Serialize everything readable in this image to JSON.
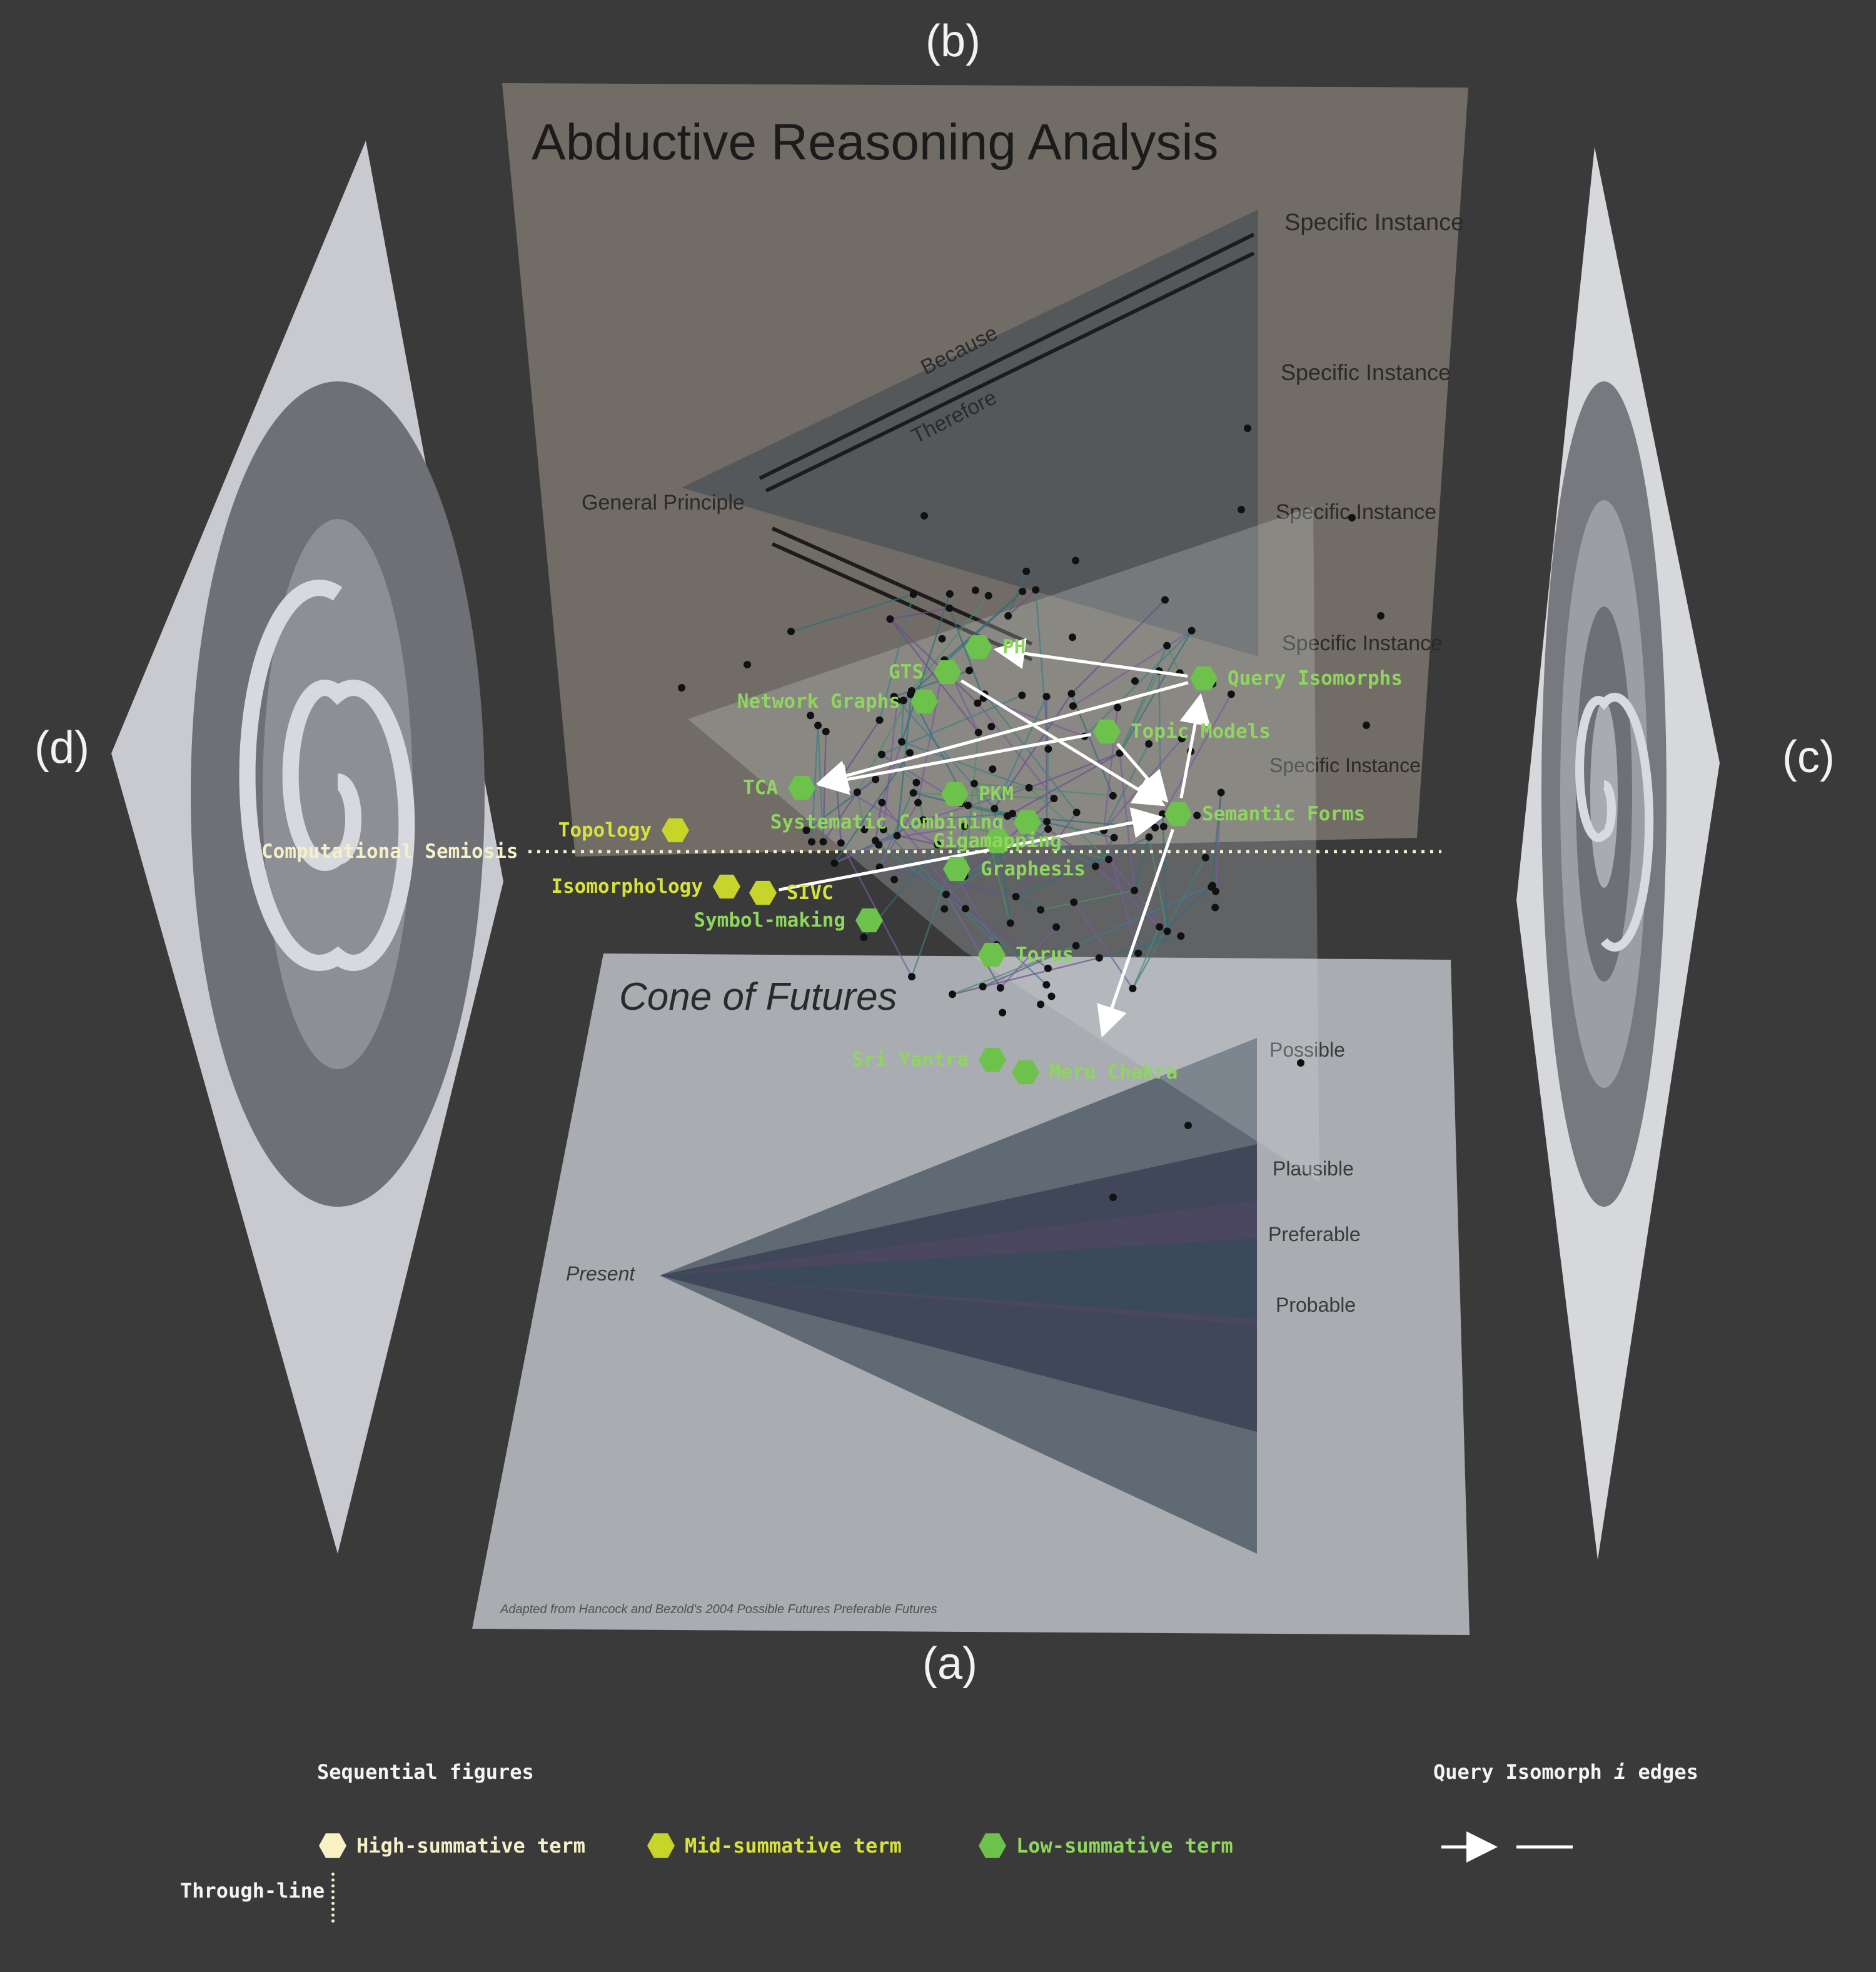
{
  "panels": {
    "a": "(a)",
    "b": "(b)",
    "c": "(c)",
    "d": "(d)"
  },
  "panel_b": {
    "title": "Abductive Reasoning Analysis",
    "labels": [
      "Specific Instance",
      "Specific Instance",
      "Specific Instance",
      "Specific Instance",
      "Specific Instance"
    ],
    "general": "General Principle",
    "because": "Because",
    "therefore": "Therefore"
  },
  "panel_a": {
    "title": "Cone of Futures",
    "labels": [
      "Possible",
      "Plausible",
      "Preferable",
      "Probable"
    ],
    "present": "Present",
    "caption": "Adapted from Hancock and Bezold's 2004 Possible Futures Preferable Futures"
  },
  "throughline": "Computational Semiosis",
  "nodes": [
    {
      "id": "ph",
      "label": "PH",
      "tier": "low"
    },
    {
      "id": "gts",
      "label": "GTS",
      "tier": "low"
    },
    {
      "id": "network",
      "label": "Network Graphs",
      "tier": "low"
    },
    {
      "id": "query",
      "label": "Query Isomorphs",
      "tier": "low"
    },
    {
      "id": "topic",
      "label": "Topic Models",
      "tier": "low"
    },
    {
      "id": "tca",
      "label": "TCA",
      "tier": "low"
    },
    {
      "id": "pkm",
      "label": "PKM",
      "tier": "low"
    },
    {
      "id": "syscomb",
      "label": "Systematic Combining",
      "tier": "low"
    },
    {
      "id": "giga",
      "label": "Gigamapping",
      "tier": "low"
    },
    {
      "id": "semantic",
      "label": "Semantic Forms",
      "tier": "low"
    },
    {
      "id": "graphesis",
      "label": "Graphesis",
      "tier": "low"
    },
    {
      "id": "topology",
      "label": "Topology",
      "tier": "mid"
    },
    {
      "id": "isomorphology",
      "label": "Isomorphology",
      "tier": "mid"
    },
    {
      "id": "sivc",
      "label": "SIVC",
      "tier": "mid"
    },
    {
      "id": "symbol",
      "label": "Symbol-making",
      "tier": "low"
    },
    {
      "id": "torus",
      "label": "Torus",
      "tier": "low"
    },
    {
      "id": "sri",
      "label": "Sri Yantra",
      "tier": "low"
    },
    {
      "id": "meru",
      "label": "Meru Chakra",
      "tier": "low"
    }
  ],
  "legend": {
    "sequential": "Sequential figures",
    "high": "High-summative term",
    "mid": "Mid-summative term",
    "low": "Low-summative term",
    "through": "Through-line",
    "edges_prefix": "Query Isomorph",
    "edges_i": "i",
    "edges_suffix": "edges"
  },
  "colors": {
    "low": "#6cc24a",
    "mid": "#c7d42a",
    "high": "#f7f1c4",
    "low_text": "#8fd65e",
    "mid_text": "#d7e23a",
    "through_text": "#f4f0c8"
  }
}
